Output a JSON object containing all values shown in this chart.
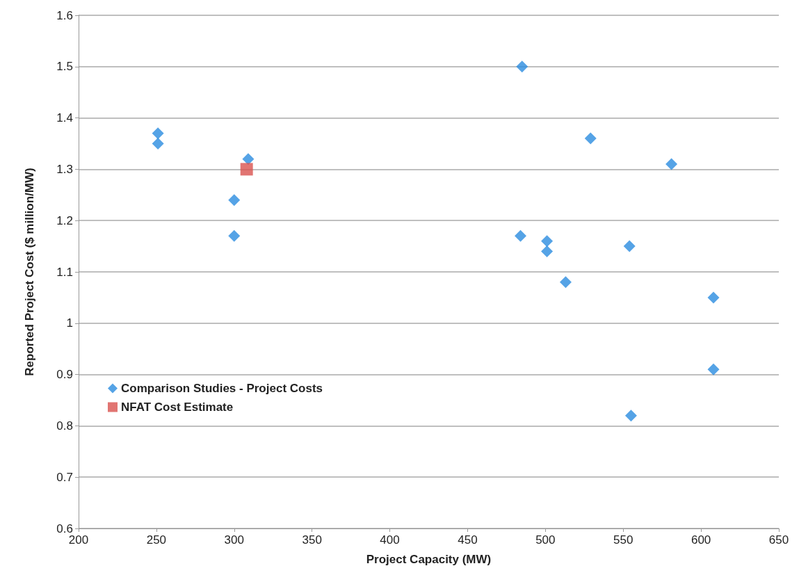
{
  "chart_data": {
    "type": "scatter",
    "xlabel": "Project Capacity (MW)",
    "ylabel": "Reported Project Cost ($ million/MW)",
    "xlim": [
      200,
      650
    ],
    "xticks": [
      200,
      250,
      300,
      350,
      400,
      450,
      500,
      550,
      600,
      650
    ],
    "ylim": [
      0.6,
      1.6
    ],
    "yticks": [
      0.6,
      0.7,
      0.8,
      0.9,
      1,
      1.1,
      1.2,
      1.3,
      1.4,
      1.5,
      1.6
    ],
    "grid": "y",
    "legend": "left",
    "series": [
      {
        "name": "Comparison Studies - Project Costs",
        "color": "#2b8ce0",
        "marker": "diamond",
        "x": [
          251,
          251,
          309,
          300,
          300,
          485,
          484,
          501,
          501,
          513,
          529,
          554,
          555,
          581,
          608,
          608
        ],
        "values": [
          1.37,
          1.35,
          1.32,
          1.24,
          1.17,
          1.5,
          1.17,
          1.16,
          1.14,
          1.08,
          1.36,
          1.15,
          0.82,
          1.31,
          1.05,
          0.91
        ]
      },
      {
        "name": "NFAT Cost Estimate",
        "color": "#d9534f",
        "marker": "square",
        "x": [
          308
        ],
        "values": [
          1.3
        ]
      }
    ]
  }
}
